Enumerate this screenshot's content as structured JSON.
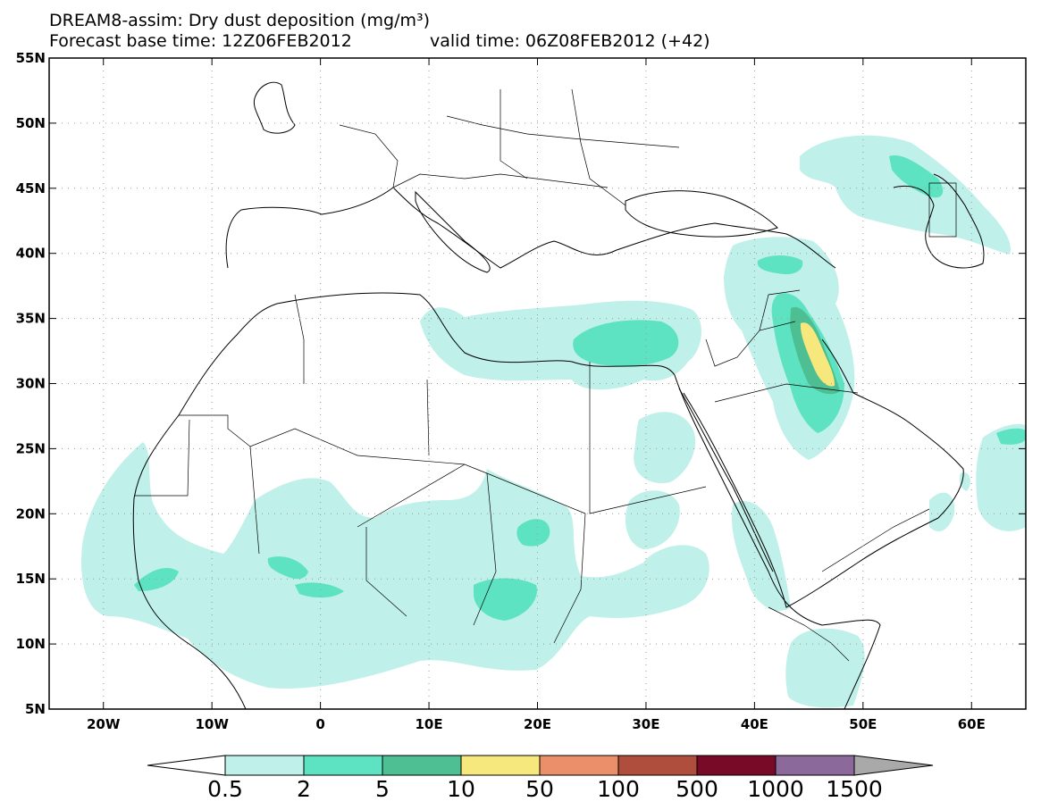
{
  "title": {
    "line1": "DREAM8-assim: Dry dust deposition (mg/m³)",
    "forecast_base": "Forecast base time: 12Z06FEB2012",
    "valid": "valid time: 06Z08FEB2012 (+42)"
  },
  "map": {
    "lon_range": [
      -25,
      65
    ],
    "lat_range": [
      5,
      55
    ],
    "lat_ticks": [
      {
        "value": 55,
        "label": "55N"
      },
      {
        "value": 50,
        "label": "50N"
      },
      {
        "value": 45,
        "label": "45N"
      },
      {
        "value": 40,
        "label": "40N"
      },
      {
        "value": 35,
        "label": "35N"
      },
      {
        "value": 30,
        "label": "30N"
      },
      {
        "value": 25,
        "label": "25N"
      },
      {
        "value": 20,
        "label": "20N"
      },
      {
        "value": 15,
        "label": "15N"
      },
      {
        "value": 10,
        "label": "10N"
      },
      {
        "value": 5,
        "label": "5N"
      }
    ],
    "lon_ticks": [
      {
        "value": -20,
        "label": "20W"
      },
      {
        "value": -10,
        "label": "10W"
      },
      {
        "value": 0,
        "label": "0"
      },
      {
        "value": 10,
        "label": "10E"
      },
      {
        "value": 20,
        "label": "20E"
      },
      {
        "value": 30,
        "label": "30E"
      },
      {
        "value": 40,
        "label": "40E"
      },
      {
        "value": 50,
        "label": "50E"
      },
      {
        "value": 60,
        "label": "60E"
      }
    ],
    "grid": true
  },
  "colorbar": {
    "colors": [
      "#ffffff",
      "#bff0e9",
      "#5de3c1",
      "#4dbf93",
      "#f6e87c",
      "#ea8f69",
      "#b04e3d",
      "#790a27",
      "#8b6a9b",
      "#a9a9a9"
    ],
    "labels": [
      "0.5",
      "2",
      "5",
      "10",
      "50",
      "100",
      "500",
      "1000",
      "1500"
    ]
  }
}
